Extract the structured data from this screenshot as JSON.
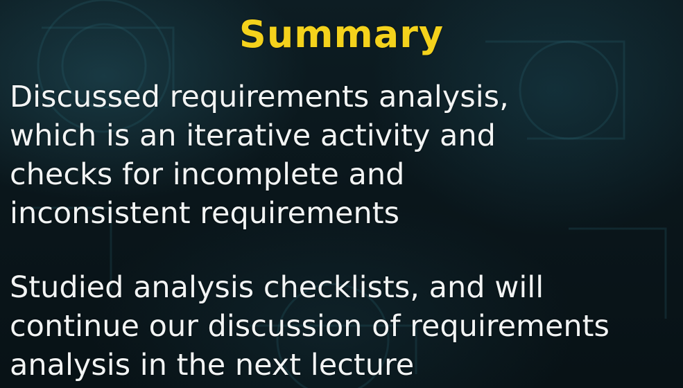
{
  "slide": {
    "title": "Summary",
    "paragraphs": [
      {
        "lines": [
          "Discussed requirements analysis,",
          "which is an iterative activity and",
          "checks for incomplete and",
          "inconsistent requirements"
        ]
      },
      {
        "lines": [
          "Studied analysis checklists, and will",
          "continue our discussion of requirements",
          "analysis in the next lecture"
        ]
      }
    ]
  },
  "colors": {
    "title": "#f4d21c",
    "body_text": "#f2f4f4",
    "background": "#0a1418"
  }
}
